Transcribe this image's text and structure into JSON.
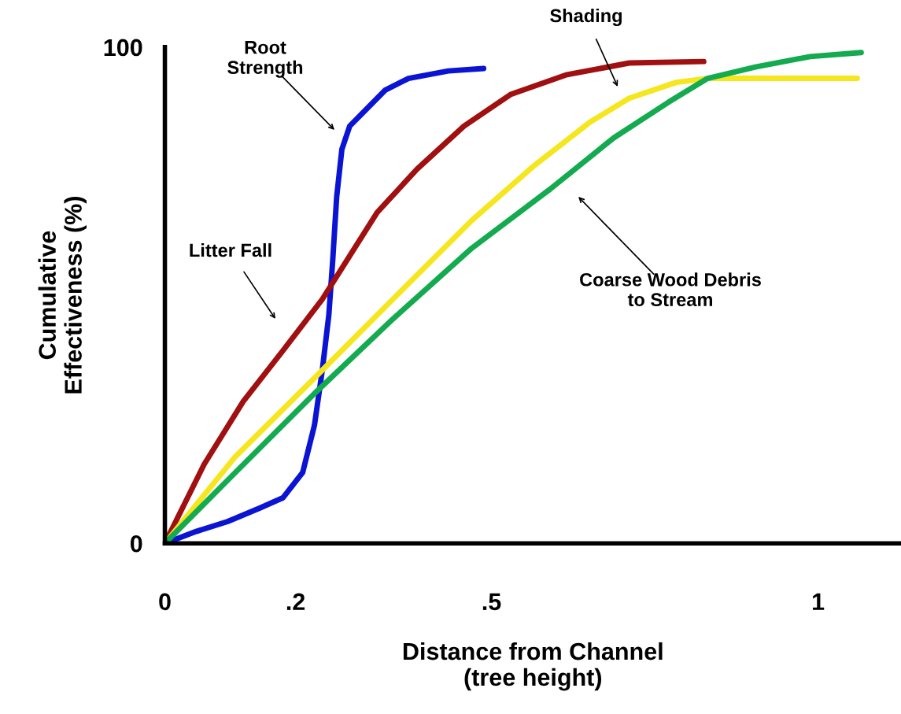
{
  "chart_data": {
    "type": "line",
    "xlabel": "Distance from Channel\n(tree height)",
    "ylabel": "Cumulative\nEffectiveness (%)",
    "xlim": [
      0,
      1.127
    ],
    "ylim": [
      0,
      100
    ],
    "xticks": [
      0,
      {
        "value": 0.2,
        "label": ".2"
      },
      {
        "value": 0.5,
        "label": ".5"
      },
      1
    ],
    "yticks": [
      0,
      100
    ],
    "grid": false,
    "legend": false,
    "marker": "none",
    "line_style": "solid",
    "series": [
      {
        "color": "#0a14d2",
        "x": [
          0,
          0.048,
          0.096,
          0.145,
          0.181,
          0.211,
          0.229,
          0.241,
          0.251,
          0.257,
          0.263,
          0.271,
          0.283,
          0.301,
          0.337,
          0.373,
          0.434,
          0.488
        ],
        "values": [
          0,
          2.4,
          4.4,
          7.1,
          9.2,
          14.3,
          23.8,
          34.9,
          46.0,
          57.1,
          69.8,
          79.4,
          84.1,
          86.5,
          91.3,
          93.7,
          95.2,
          95.7
        ]
      },
      {
        "color": "#a01010",
        "x": [
          0,
          0.06,
          0.12,
          0.181,
          0.241,
          0.325,
          0.386,
          0.458,
          0.53,
          0.614,
          0.711,
          0.825
        ],
        "values": [
          0,
          15.9,
          28.6,
          38.9,
          49.2,
          66.7,
          75.4,
          84.1,
          90.5,
          94.4,
          96.8,
          97.1
        ]
      },
      {
        "color": "#f5e61e",
        "x": [
          0,
          0.108,
          0.229,
          0.349,
          0.47,
          0.566,
          0.651,
          0.711,
          0.783,
          0.831,
          1.06
        ],
        "values": [
          0,
          17.5,
          33.3,
          49.2,
          65.1,
          76.2,
          84.9,
          89.7,
          92.9,
          93.7,
          93.7
        ]
      },
      {
        "color": "#14aa50",
        "x": [
          0,
          0.108,
          0.229,
          0.349,
          0.47,
          0.59,
          0.687,
          0.771,
          0.831,
          0.904,
          0.988,
          1.066
        ],
        "values": [
          0,
          14.3,
          30.2,
          45.2,
          59.5,
          71.4,
          81.7,
          88.9,
          93.7,
          96.0,
          98.1,
          98.9
        ]
      }
    ],
    "annotations": [
      "Root\nStrength",
      "Shading",
      "Litter Fall",
      "Coarse Wood Debris\nto Stream"
    ]
  }
}
